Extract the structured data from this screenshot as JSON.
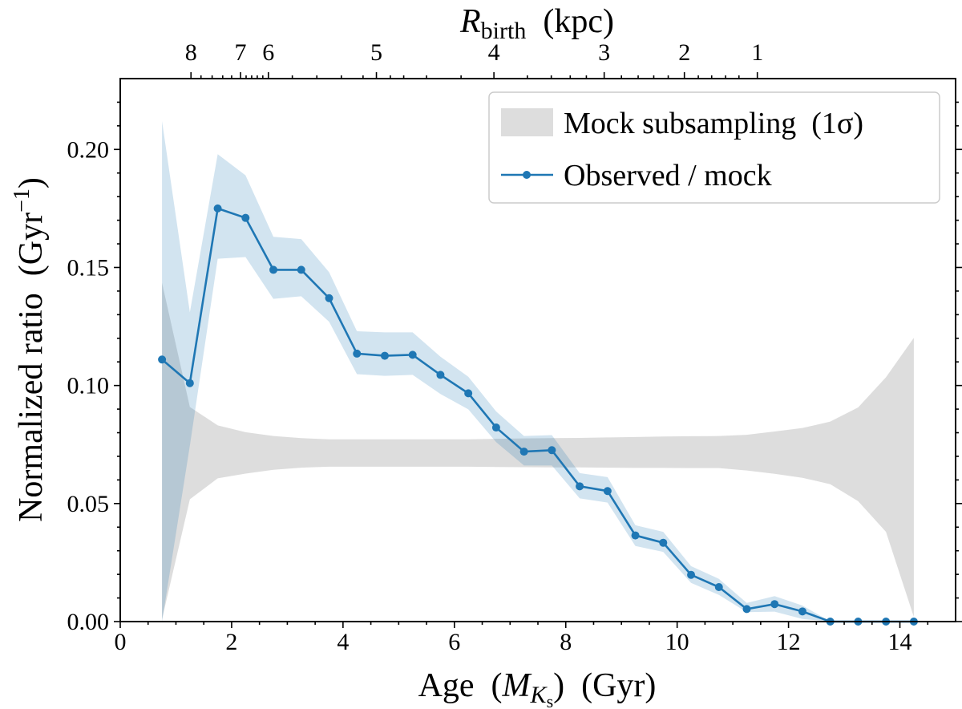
{
  "chart_data": {
    "type": "line",
    "xlabel": {
      "pre": "Age  (",
      "var": "M",
      "sub": "K",
      "subsub": "s",
      "post": ")  (Gyr)"
    },
    "ylabel": "Normalized ratio  (Gyr",
    "ylabel_sup": "−1",
    "ylabel_close": ")",
    "xlim": [
      0,
      15
    ],
    "ylim": [
      0,
      0.23
    ],
    "x_ticks": [
      "0",
      "2",
      "4",
      "6",
      "8",
      "10",
      "12",
      "14"
    ],
    "y_ticks": [
      "0.00",
      "0.05",
      "0.10",
      "0.15",
      "0.20"
    ],
    "top_axis": {
      "label_var": "R",
      "label_sub": "birth",
      "label_post": "  (kpc)",
      "ticks": [
        {
          "label": "8",
          "age": 1.27
        },
        {
          "label": "7",
          "age": 2.16
        },
        {
          "label": "6",
          "age": 2.66
        },
        {
          "label": "5",
          "age": 4.6
        },
        {
          "label": "4",
          "age": 6.71
        },
        {
          "label": "3",
          "age": 8.69
        },
        {
          "label": "2",
          "age": 10.13
        },
        {
          "label": "1",
          "age": 11.44
        }
      ]
    },
    "x": [
      0.75,
      1.25,
      1.75,
      2.25,
      2.75,
      3.25,
      3.75,
      4.25,
      4.75,
      5.25,
      5.75,
      6.25,
      6.75,
      7.25,
      7.75,
      8.25,
      8.75,
      9.25,
      9.75,
      10.25,
      10.75,
      11.25,
      11.75,
      12.25,
      12.75,
      13.25,
      13.75,
      14.25
    ],
    "series": [
      {
        "name": "Observed / mock",
        "color": "#1f77b4",
        "values": [
          0.111,
          0.101,
          0.175,
          0.171,
          0.149,
          0.149,
          0.137,
          0.1135,
          0.1126,
          0.113,
          0.1045,
          0.0967,
          0.0822,
          0.072,
          0.0726,
          0.0573,
          0.0553,
          0.0365,
          0.0334,
          0.0198,
          0.0146,
          0.0053,
          0.0074,
          0.0043,
          0,
          0,
          0,
          0
        ],
        "band_upper": [
          0.212,
          0.131,
          0.198,
          0.189,
          0.163,
          0.162,
          0.148,
          0.123,
          0.1225,
          0.1225,
          0.1122,
          0.1037,
          0.089,
          0.0786,
          0.079,
          0.0629,
          0.0612,
          0.0408,
          0.038,
          0.0235,
          0.0181,
          0.0079,
          0.0108,
          0.0068,
          0,
          0,
          0,
          0
        ],
        "band_lower": [
          0.0,
          0.0745,
          0.1537,
          0.1544,
          0.1367,
          0.1378,
          0.127,
          0.1048,
          0.1041,
          0.1045,
          0.0964,
          0.0899,
          0.076,
          0.0661,
          0.0661,
          0.0522,
          0.0504,
          0.032,
          0.0295,
          0.0164,
          0.0113,
          0.004,
          0.0042,
          0.0011,
          0,
          0,
          0,
          0
        ]
      },
      {
        "name": "Mock subsampling  (1σ)",
        "color": "#bbbbbb",
        "band_upper": [
          0.1435,
          0.0909,
          0.0831,
          0.0802,
          0.0786,
          0.0777,
          0.0772,
          0.0772,
          0.0772,
          0.0772,
          0.0772,
          0.0772,
          0.0774,
          0.0776,
          0.0777,
          0.0778,
          0.078,
          0.0782,
          0.0784,
          0.0785,
          0.0786,
          0.0791,
          0.0805,
          0.082,
          0.0847,
          0.0907,
          0.1035,
          0.1202
        ],
        "band_lower": [
          0.001,
          0.0518,
          0.0607,
          0.0627,
          0.0643,
          0.0652,
          0.0656,
          0.0656,
          0.0656,
          0.0656,
          0.0656,
          0.0656,
          0.0655,
          0.0654,
          0.0653,
          0.0653,
          0.0652,
          0.0651,
          0.0651,
          0.065,
          0.065,
          0.064,
          0.0626,
          0.0609,
          0.0582,
          0.051,
          0.038,
          0.002
        ]
      }
    ],
    "legend": {
      "placement": "top-right",
      "entries": [
        "Mock subsampling  (1σ)",
        "Observed / mock"
      ]
    },
    "grid": false
  }
}
